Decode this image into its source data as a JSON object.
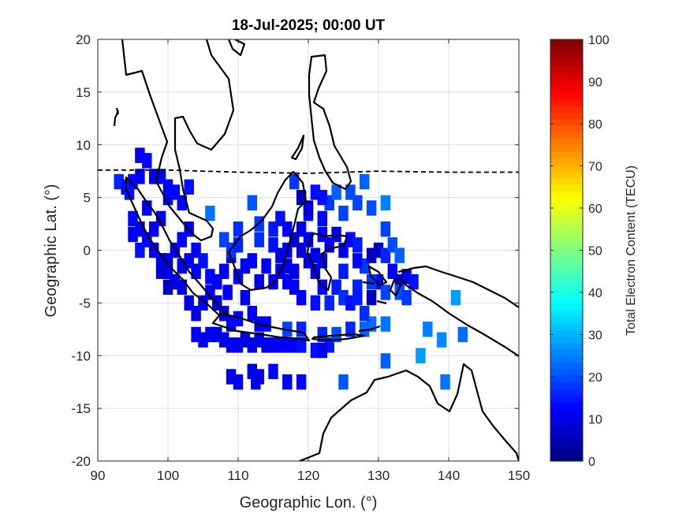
{
  "chart_data": {
    "type": "heatmap",
    "title": "18-Jul-2025; 00:00 UT",
    "xlabel": "Geographic Lon. (°)",
    "ylabel": "Geographic Lat. (°)",
    "colorbar_label": "Total Electron Content (TECU)",
    "colormap": "jet",
    "xlim": [
      90,
      150
    ],
    "ylim": [
      -20,
      20
    ],
    "clim": [
      0,
      100
    ],
    "x_ticks": [
      90,
      100,
      110,
      120,
      130,
      140,
      150
    ],
    "y_ticks": [
      20,
      15,
      10,
      5,
      0,
      -5,
      -10,
      -15,
      -20
    ],
    "colorbar_ticks": [
      100,
      90,
      80,
      70,
      60,
      50,
      40,
      30,
      20,
      10,
      0
    ],
    "grid": true,
    "overlays": [
      "coastlines",
      "magnetic-equator (dashed)"
    ],
    "magnetic_equator": [
      [
        90,
        7.6
      ],
      [
        100,
        7.6
      ],
      [
        110,
        7.4
      ],
      [
        120,
        7.3
      ],
      [
        130,
        7.5
      ],
      [
        140,
        7.4
      ],
      [
        150,
        7.4
      ]
    ],
    "points": [
      [
        93,
        6.5,
        16
      ],
      [
        94,
        6,
        14
      ],
      [
        95,
        6.5,
        13
      ],
      [
        96,
        9,
        12
      ],
      [
        97,
        8.5,
        13
      ],
      [
        96,
        7,
        12
      ],
      [
        98,
        7,
        12
      ],
      [
        99,
        7,
        11
      ],
      [
        100,
        6,
        12
      ],
      [
        94.5,
        5.5,
        14
      ],
      [
        95,
        3,
        13
      ],
      [
        95,
        1.5,
        12
      ],
      [
        96,
        2,
        11
      ],
      [
        97,
        4,
        12
      ],
      [
        96,
        0,
        14
      ],
      [
        97,
        1,
        12
      ],
      [
        98,
        2,
        11
      ],
      [
        99,
        3,
        10
      ],
      [
        100,
        5,
        12
      ],
      [
        101,
        5.5,
        13
      ],
      [
        102,
        4.5,
        13
      ],
      [
        103,
        6,
        14
      ],
      [
        98,
        0,
        11
      ],
      [
        99,
        -1,
        11
      ],
      [
        100,
        -1,
        10
      ],
      [
        101,
        0,
        12
      ],
      [
        102,
        1,
        12
      ],
      [
        103,
        2,
        12
      ],
      [
        104,
        0,
        12
      ],
      [
        100,
        -2,
        11
      ],
      [
        101,
        -3,
        10
      ],
      [
        99,
        -2,
        9
      ],
      [
        100,
        -3.5,
        7
      ],
      [
        102,
        -1.5,
        11
      ],
      [
        103,
        -1,
        12
      ],
      [
        104,
        -2,
        12
      ],
      [
        105,
        -1,
        14
      ],
      [
        106,
        -2.5,
        13
      ],
      [
        106,
        3.5,
        24
      ],
      [
        102,
        -3.5,
        10
      ],
      [
        103,
        -5,
        11
      ],
      [
        104,
        -6,
        10
      ],
      [
        105,
        -5,
        11
      ],
      [
        106,
        -4,
        12
      ],
      [
        107,
        -5,
        10
      ],
      [
        108,
        -6,
        12
      ],
      [
        104,
        -8,
        12
      ],
      [
        105,
        -8.5,
        12
      ],
      [
        106,
        -8,
        11
      ],
      [
        107,
        -8,
        10
      ],
      [
        108,
        -8.5,
        11
      ],
      [
        109,
        -9,
        10
      ],
      [
        110,
        -9,
        11
      ],
      [
        111,
        -8.5,
        10
      ],
      [
        112,
        -9,
        10
      ],
      [
        113,
        -8.5,
        10
      ],
      [
        114,
        -9,
        11
      ],
      [
        115,
        -9,
        11
      ],
      [
        116,
        -9,
        11
      ],
      [
        117,
        -9,
        12
      ],
      [
        118,
        -9,
        12
      ],
      [
        119,
        -9,
        12
      ],
      [
        109,
        -7,
        12
      ],
      [
        110,
        -6.5,
        13
      ],
      [
        112,
        -6,
        12
      ],
      [
        113,
        -7,
        10
      ],
      [
        114,
        -7,
        12
      ],
      [
        111,
        -4.5,
        11
      ],
      [
        110,
        -2.5,
        13
      ],
      [
        109,
        -0.5,
        10
      ],
      [
        108,
        -2,
        11
      ],
      [
        108.5,
        -4,
        12
      ],
      [
        107,
        -3,
        12
      ],
      [
        109,
        -12,
        12
      ],
      [
        110,
        -12.5,
        11
      ],
      [
        112,
        -11.5,
        10
      ],
      [
        113,
        -12,
        10
      ],
      [
        112.5,
        -12.5,
        10
      ],
      [
        115,
        -11.5,
        13
      ],
      [
        117,
        -12.5,
        12
      ],
      [
        119,
        -12.5,
        13
      ],
      [
        125,
        -12.5,
        21
      ],
      [
        117,
        -7.5,
        19
      ],
      [
        119,
        -7.5,
        16
      ],
      [
        119,
        -9,
        14
      ],
      [
        122,
        -8,
        16
      ],
      [
        123,
        -9,
        15
      ],
      [
        124,
        -8,
        20
      ],
      [
        126,
        -7.5,
        16
      ],
      [
        128,
        -7.5,
        22
      ],
      [
        129,
        -7,
        23
      ],
      [
        121,
        -9.5,
        14
      ],
      [
        122,
        -9.5,
        12
      ],
      [
        131,
        -7,
        24
      ],
      [
        131,
        -10.5,
        22
      ],
      [
        136,
        -10,
        28
      ],
      [
        137,
        -7.5,
        25
      ],
      [
        139,
        -8.5,
        26
      ],
      [
        142,
        -8,
        23
      ],
      [
        141,
        -4.5,
        28
      ],
      [
        139.5,
        -12.5,
        24
      ],
      [
        128,
        6.5,
        22
      ],
      [
        127,
        4.5,
        19
      ],
      [
        125,
        3.5,
        19
      ],
      [
        122,
        3,
        13
      ],
      [
        123,
        4.5,
        18
      ],
      [
        124,
        5.5,
        22
      ],
      [
        126,
        5.5,
        20
      ],
      [
        131,
        4.5,
        25
      ],
      [
        129,
        4,
        20
      ],
      [
        118,
        6.5,
        18
      ],
      [
        119,
        5,
        5
      ],
      [
        120,
        3.5,
        12
      ],
      [
        121,
        5.5,
        14
      ],
      [
        120,
        4,
        8
      ],
      [
        122,
        5,
        14
      ],
      [
        112,
        4.5,
        21
      ],
      [
        110,
        2,
        17
      ],
      [
        108,
        1,
        19
      ],
      [
        109,
        0,
        18
      ],
      [
        110,
        0.5,
        16
      ],
      [
        113,
        1,
        17
      ],
      [
        115,
        0.5,
        14
      ],
      [
        116,
        -0.5,
        10
      ],
      [
        116,
        -2,
        12
      ],
      [
        115,
        -3,
        10
      ],
      [
        117,
        -3,
        11
      ],
      [
        118,
        -3.5,
        12
      ],
      [
        119,
        -4.5,
        12
      ],
      [
        117,
        0,
        11
      ],
      [
        118,
        1,
        8
      ],
      [
        119,
        0,
        8
      ],
      [
        120,
        -1,
        10
      ],
      [
        121,
        -2,
        11
      ],
      [
        120,
        1,
        12
      ],
      [
        122,
        1.5,
        13
      ],
      [
        123,
        0.5,
        10
      ],
      [
        124,
        1.5,
        11
      ],
      [
        125,
        0,
        12
      ],
      [
        126,
        1,
        13
      ],
      [
        125,
        -2,
        15
      ],
      [
        124,
        -3.5,
        15
      ],
      [
        122,
        -3.5,
        13
      ],
      [
        121,
        -5,
        14
      ],
      [
        123,
        -5,
        16
      ],
      [
        125,
        -4.5,
        17
      ],
      [
        126,
        -5,
        14
      ],
      [
        127,
        -3.5,
        16
      ],
      [
        128,
        -1.5,
        18
      ],
      [
        129,
        -0.5,
        6
      ],
      [
        130,
        0,
        7
      ],
      [
        131,
        -0.5,
        16
      ],
      [
        132,
        0.5,
        20
      ],
      [
        131,
        2,
        19
      ],
      [
        133,
        -0.5,
        22
      ],
      [
        132,
        -2,
        12
      ],
      [
        133,
        -3,
        12
      ],
      [
        134,
        -2.5,
        10
      ],
      [
        135,
        -3,
        14
      ],
      [
        130,
        -3,
        13
      ],
      [
        131,
        -4,
        19
      ],
      [
        129,
        -4.5,
        6
      ],
      [
        127,
        -4.5,
        15
      ],
      [
        128,
        -6,
        17
      ],
      [
        129,
        -3,
        18
      ],
      [
        133,
        -4,
        20
      ],
      [
        134,
        -4.5,
        18
      ],
      [
        113,
        -3,
        10
      ],
      [
        112,
        -1,
        12
      ],
      [
        114,
        -1.5,
        12
      ],
      [
        111,
        -1.5,
        12
      ],
      [
        121,
        -0.5,
        11
      ],
      [
        122,
        -1,
        12
      ],
      [
        118,
        -2,
        11
      ],
      [
        117,
        -1.5,
        10
      ],
      [
        127,
        0.5,
        15
      ],
      [
        127,
        -1,
        13
      ],
      [
        115,
        2,
        15
      ],
      [
        116,
        3,
        14
      ],
      [
        113,
        2.5,
        18
      ],
      [
        119,
        2,
        10
      ],
      [
        117,
        2,
        12
      ]
    ]
  },
  "colors": {
    "axis": "#262626",
    "grid": "#dfdfdf",
    "coast": "#000000"
  }
}
